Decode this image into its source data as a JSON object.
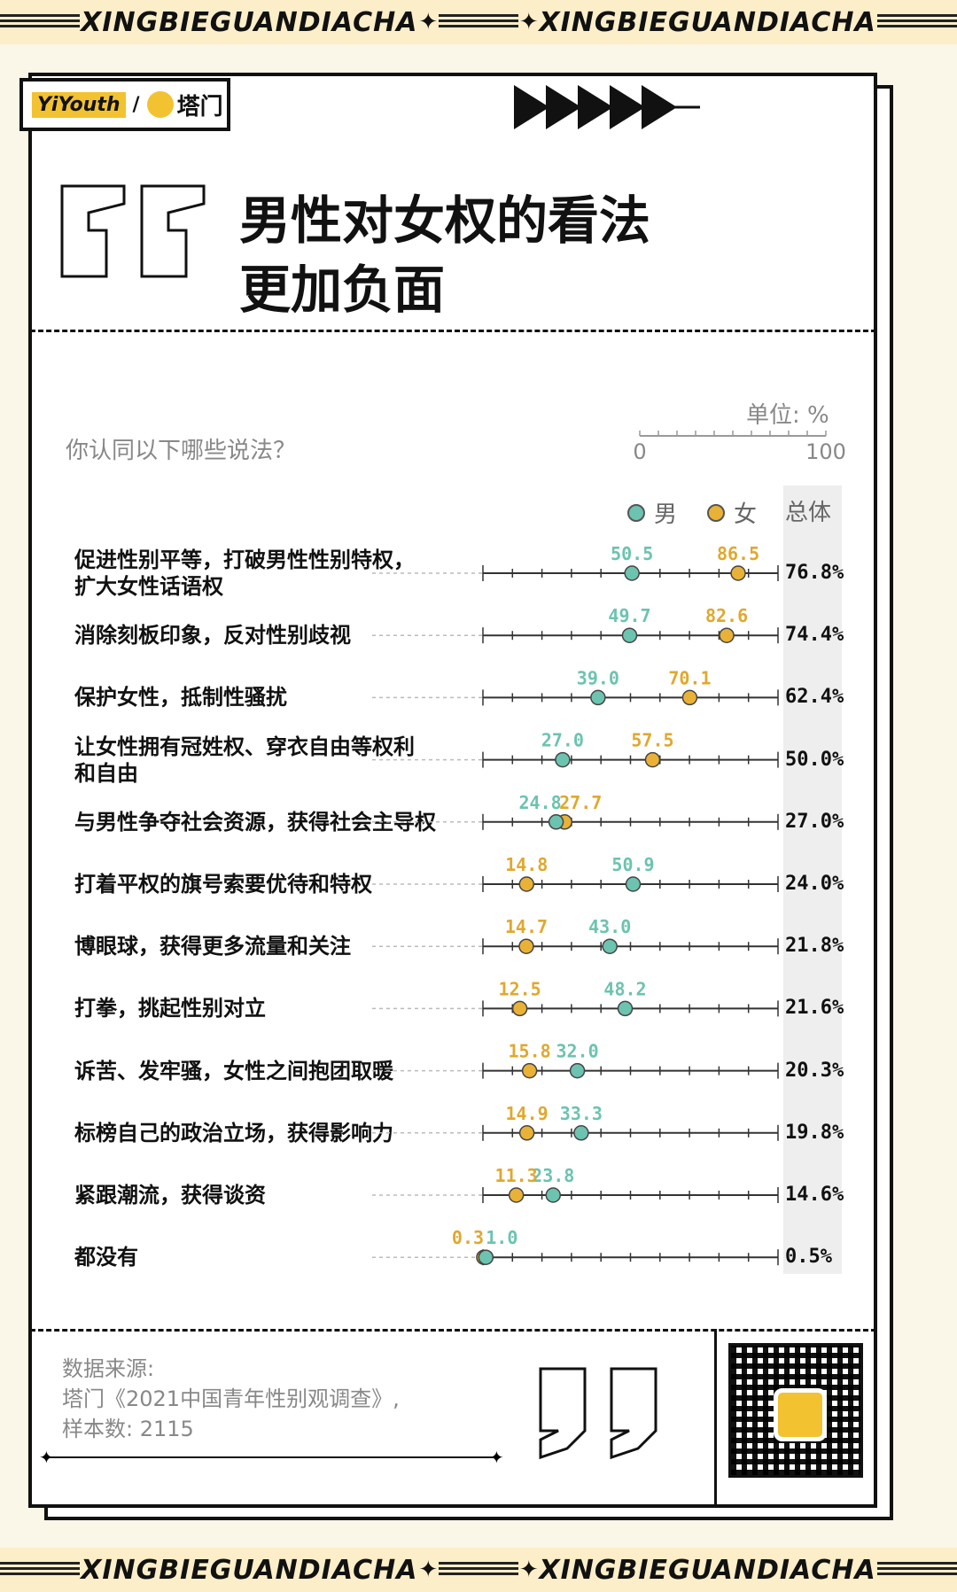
{
  "banner": {
    "text": "XINGBIEGUANDIACHA"
  },
  "logo": {
    "brand1": "YiYouth",
    "separator": "/",
    "brand2": "塔门"
  },
  "title": {
    "line1": "男性对女权的看法",
    "line2": "更加负面"
  },
  "header": {
    "question": "你认同以下哪些说法？",
    "unit": "单位: %",
    "scale_min": "0",
    "scale_max": "100"
  },
  "legend": {
    "male": "男",
    "female": "女",
    "total": "总体"
  },
  "colors": {
    "male": "#6cc3b0",
    "female": "#e9b236",
    "male_label": "#6cc3b0",
    "female_label": "#e0a82e"
  },
  "chart_data": {
    "type": "scatter",
    "xlim": [
      0,
      100
    ],
    "categories": [
      "促进性别平等，打破男性性别特权，\n扩大女性话语权",
      "消除刻板印象，反对性别歧视",
      "保护女性，抵制性骚扰",
      "让女性拥有冠姓权、穿衣自由等权利\n和自由",
      "与男性争夺社会资源，获得社会主导权",
      "打着平权的旗号索要优待和特权",
      "博眼球，获得更多流量和关注",
      "打拳，挑起性别对立",
      "诉苦、发牢骚，女性之间抱团取暖",
      "标榜自己的政治立场，获得影响力",
      "紧跟潮流，获得谈资",
      "都没有"
    ],
    "series": [
      {
        "name": "男",
        "values": [
          50.5,
          49.7,
          39.0,
          27.0,
          24.8,
          50.9,
          43.0,
          48.2,
          32.0,
          33.3,
          23.8,
          1.0
        ],
        "labels": [
          "50.5",
          "49.7",
          "39.0",
          "27.0",
          "24.8",
          "50.9",
          "43.0",
          "48.2",
          "32.0",
          "33.3",
          "23.8",
          "1.0"
        ]
      },
      {
        "name": "女",
        "values": [
          86.5,
          82.6,
          70.1,
          57.5,
          27.7,
          14.8,
          14.7,
          12.5,
          15.8,
          14.9,
          11.3,
          0.3
        ],
        "labels": [
          "86.5",
          "82.6",
          "70.1",
          "57.5",
          "27.7",
          "14.8",
          "14.7",
          "12.5",
          "15.8",
          "14.9",
          "11.3",
          "0.3"
        ]
      }
    ],
    "totals": [
      "76.8%",
      "74.4%",
      "62.4%",
      "50.0%",
      "27.0%",
      "24.0%",
      "21.8%",
      "21.6%",
      "20.3%",
      "19.8%",
      "14.6%",
      "0.5%"
    ]
  },
  "source": {
    "line1": "数据来源:",
    "line2": "塔门《2021中国青年性别观调查》,",
    "line3": "样本数: 2115"
  }
}
